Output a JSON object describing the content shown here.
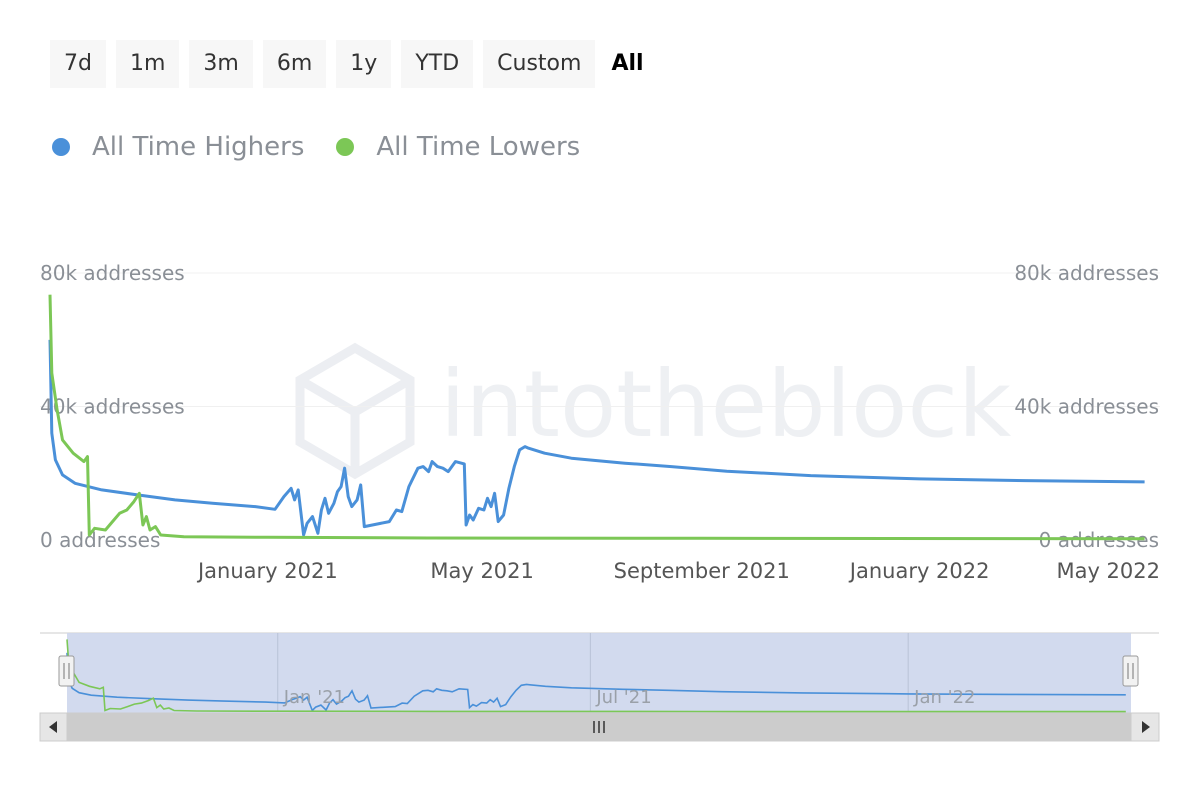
{
  "range_selector": {
    "buttons": [
      "7d",
      "1m",
      "3m",
      "6m",
      "1y",
      "YTD",
      "Custom",
      "All"
    ],
    "active": "All"
  },
  "legend": {
    "items": [
      {
        "label": "All Time Highers",
        "color": "#4a90d9"
      },
      {
        "label": "All Time Lowers",
        "color": "#7cc756"
      }
    ]
  },
  "watermark": {
    "text": "intotheblock"
  },
  "chart_data": {
    "type": "line",
    "title": "",
    "xlabel": "",
    "ylabel": "",
    "y_axis_left": {
      "ticks": [
        "0 addresses",
        "40k addresses",
        "80k addresses"
      ],
      "range": [
        0,
        80000
      ]
    },
    "y_axis_right": {
      "ticks": [
        "0 addresses",
        "40k addresses",
        "80k addresses"
      ],
      "range": [
        0,
        80000
      ]
    },
    "x_range": [
      "2020-09-01",
      "2022-05-10"
    ],
    "x_ticks": [
      {
        "date": "2021-01-01",
        "label": "January 2021"
      },
      {
        "date": "2021-05-01",
        "label": "May 2021"
      },
      {
        "date": "2021-09-01",
        "label": "September 2021"
      },
      {
        "date": "2022-01-01",
        "label": "January 2022"
      },
      {
        "date": "2022-05-01",
        "label": "May 2022"
      }
    ],
    "grid": true,
    "legend_position": "top-left",
    "series": [
      {
        "name": "All Time Highers",
        "color": "#4a90d9",
        "points": [
          [
            "2020-09-01",
            60000
          ],
          [
            "2020-09-02",
            32000
          ],
          [
            "2020-09-04",
            24000
          ],
          [
            "2020-09-08",
            19500
          ],
          [
            "2020-09-15",
            17000
          ],
          [
            "2020-09-30",
            15000
          ],
          [
            "2020-10-20",
            13500
          ],
          [
            "2020-11-10",
            12000
          ],
          [
            "2020-12-01",
            11000
          ],
          [
            "2020-12-25",
            10000
          ],
          [
            "2021-01-05",
            9200
          ],
          [
            "2021-01-10",
            13000
          ],
          [
            "2021-01-14",
            15500
          ],
          [
            "2021-01-16",
            12000
          ],
          [
            "2021-01-18",
            15000
          ],
          [
            "2021-01-21",
            1500
          ],
          [
            "2021-01-23",
            5000
          ],
          [
            "2021-01-26",
            7000
          ],
          [
            "2021-01-29",
            2000
          ],
          [
            "2021-01-31",
            9000
          ],
          [
            "2021-02-02",
            12500
          ],
          [
            "2021-02-04",
            8000
          ],
          [
            "2021-02-07",
            11000
          ],
          [
            "2021-02-09",
            14500
          ],
          [
            "2021-02-11",
            16000
          ],
          [
            "2021-02-13",
            21500
          ],
          [
            "2021-02-15",
            13000
          ],
          [
            "2021-02-17",
            10000
          ],
          [
            "2021-02-20",
            12000
          ],
          [
            "2021-02-22",
            16500
          ],
          [
            "2021-02-24",
            4000
          ],
          [
            "2021-03-10",
            5500
          ],
          [
            "2021-03-14",
            9000
          ],
          [
            "2021-03-17",
            8500
          ],
          [
            "2021-03-21",
            16000
          ],
          [
            "2021-03-26",
            21500
          ],
          [
            "2021-03-29",
            22000
          ],
          [
            "2021-04-01",
            20500
          ],
          [
            "2021-04-03",
            23500
          ],
          [
            "2021-04-06",
            22000
          ],
          [
            "2021-04-09",
            21500
          ],
          [
            "2021-04-12",
            20500
          ],
          [
            "2021-04-16",
            23500
          ],
          [
            "2021-04-21",
            22800
          ],
          [
            "2021-04-22",
            4500
          ],
          [
            "2021-04-24",
            7500
          ],
          [
            "2021-04-26",
            6000
          ],
          [
            "2021-04-29",
            9500
          ],
          [
            "2021-05-02",
            9000
          ],
          [
            "2021-05-04",
            12500
          ],
          [
            "2021-05-06",
            10000
          ],
          [
            "2021-05-08",
            14000
          ],
          [
            "2021-05-10",
            5500
          ],
          [
            "2021-05-13",
            7500
          ],
          [
            "2021-05-16",
            15500
          ],
          [
            "2021-05-19",
            22000
          ],
          [
            "2021-05-22",
            27000
          ],
          [
            "2021-05-25",
            28000
          ],
          [
            "2021-05-27",
            27500
          ],
          [
            "2021-06-05",
            26000
          ],
          [
            "2021-06-20",
            24500
          ],
          [
            "2021-07-20",
            23000
          ],
          [
            "2021-08-15",
            22000
          ],
          [
            "2021-09-15",
            20600
          ],
          [
            "2021-11-01",
            19300
          ],
          [
            "2022-01-01",
            18300
          ],
          [
            "2022-03-01",
            17800
          ],
          [
            "2022-05-07",
            17400
          ]
        ]
      },
      {
        "name": "All Time Lowers",
        "color": "#7cc756",
        "points": [
          [
            "2020-09-01",
            73500
          ],
          [
            "2020-09-02",
            50000
          ],
          [
            "2020-09-05",
            39000
          ],
          [
            "2020-09-08",
            30000
          ],
          [
            "2020-09-14",
            26000
          ],
          [
            "2020-09-20",
            23500
          ],
          [
            "2020-09-22",
            25000
          ],
          [
            "2020-09-23",
            1500
          ],
          [
            "2020-09-26",
            3500
          ],
          [
            "2020-10-02",
            3000
          ],
          [
            "2020-10-06",
            5500
          ],
          [
            "2020-10-10",
            8000
          ],
          [
            "2020-10-14",
            9000
          ],
          [
            "2020-10-18",
            11500
          ],
          [
            "2020-10-21",
            14000
          ],
          [
            "2020-10-23",
            4500
          ],
          [
            "2020-10-25",
            7000
          ],
          [
            "2020-10-27",
            3000
          ],
          [
            "2020-10-30",
            4000
          ],
          [
            "2020-11-02",
            1500
          ],
          [
            "2020-11-15",
            1000
          ],
          [
            "2021-01-01",
            800
          ],
          [
            "2021-04-01",
            600
          ],
          [
            "2021-09-01",
            500
          ],
          [
            "2022-05-07",
            400
          ]
        ]
      }
    ],
    "navigator": {
      "x_ticks": [
        {
          "date": "2021-01-01",
          "label": "Jan '21"
        },
        {
          "date": "2021-07-01",
          "label": "Jul '21"
        },
        {
          "date": "2022-01-01",
          "label": "Jan '22"
        }
      ],
      "selection": [
        "2020-09-01",
        "2022-05-10"
      ]
    }
  }
}
